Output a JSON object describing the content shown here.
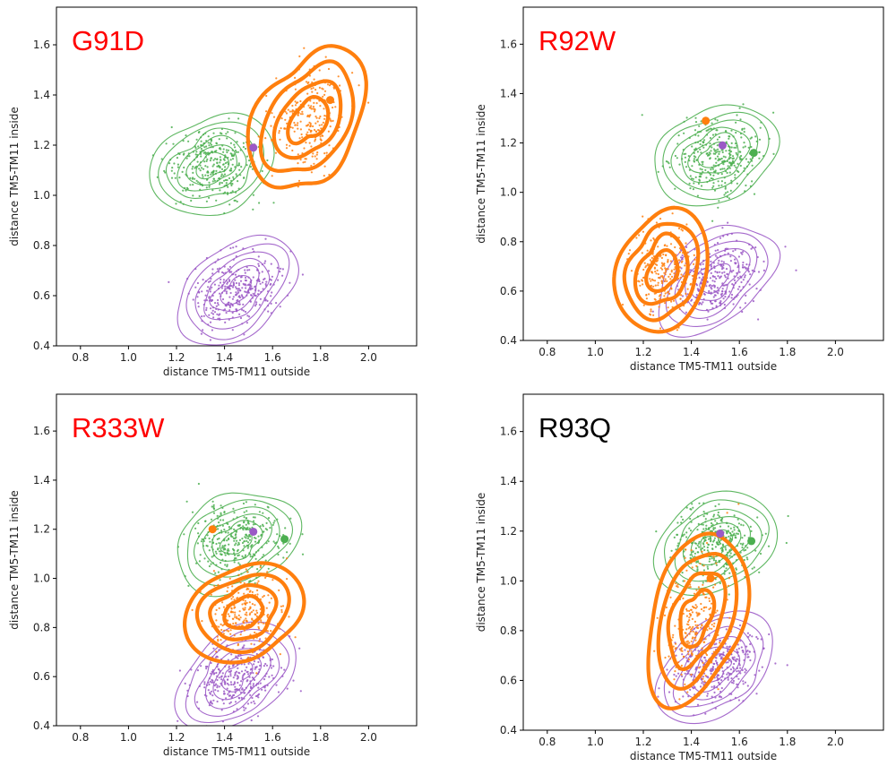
{
  "figure": {
    "colors": {
      "green": "#4caf50",
      "purple": "#9b59c6",
      "orange": "#ff7f0e",
      "title_red": "#ff0000",
      "title_black": "#000000"
    }
  },
  "chart_data": [
    {
      "type": "scatter",
      "title": "G91D",
      "title_color": "#ff0000",
      "xlabel": "distance TM5-TM11 outside",
      "ylabel": "distance TM5-TM11 inside",
      "xlim": [
        0.7,
        2.2
      ],
      "ylim": [
        0.4,
        1.75
      ],
      "xticks": [
        "0.8",
        "1.0",
        "1.2",
        "1.4",
        "1.6",
        "1.8",
        "2.0"
      ],
      "yticks": [
        "0.4",
        "0.6",
        "0.8",
        "1.0",
        "1.2",
        "1.4",
        "1.6"
      ],
      "grid": false,
      "series": [
        {
          "color": "green",
          "center": [
            1.35,
            1.12
          ],
          "spread": [
            0.16,
            0.13
          ],
          "tilt": 0.1
        },
        {
          "color": "purple",
          "center": [
            1.45,
            0.62
          ],
          "spread": [
            0.17,
            0.12
          ],
          "tilt": 0.45
        },
        {
          "color": "orange",
          "center": [
            1.75,
            1.3
          ],
          "spread": [
            0.13,
            0.2
          ],
          "tilt": -0.3
        }
      ],
      "markers": [
        {
          "color": "purple",
          "x": 1.52,
          "y": 1.19
        },
        {
          "color": "orange",
          "x": 1.84,
          "y": 1.38
        }
      ]
    },
    {
      "type": "scatter",
      "title": "R92W",
      "title_color": "#ff0000",
      "xlabel": "distance TM5-TM11 outside",
      "ylabel": "distance TM5-TM11 inside",
      "xlim": [
        0.7,
        2.2
      ],
      "ylim": [
        0.4,
        1.75
      ],
      "xticks": [
        "0.8",
        "1.0",
        "1.2",
        "1.4",
        "1.6",
        "1.8",
        "2.0"
      ],
      "yticks": [
        "0.4",
        "0.6",
        "0.8",
        "1.0",
        "1.2",
        "1.4",
        "1.6"
      ],
      "grid": false,
      "series": [
        {
          "color": "green",
          "center": [
            1.5,
            1.15
          ],
          "spread": [
            0.16,
            0.13
          ],
          "tilt": 0.1
        },
        {
          "color": "purple",
          "center": [
            1.5,
            0.65
          ],
          "spread": [
            0.17,
            0.12
          ],
          "tilt": 0.45
        },
        {
          "color": "orange",
          "center": [
            1.28,
            0.68
          ],
          "spread": [
            0.12,
            0.16
          ],
          "tilt": 0.1
        }
      ],
      "markers": [
        {
          "color": "purple",
          "x": 1.53,
          "y": 1.19
        },
        {
          "color": "green",
          "x": 1.66,
          "y": 1.16
        },
        {
          "color": "orange",
          "x": 1.46,
          "y": 1.29
        }
      ]
    },
    {
      "type": "scatter",
      "title": "R333W",
      "title_color": "#ff0000",
      "xlabel": "distance TM5-TM11 outside",
      "ylabel": "distance TM5-TM11 inside",
      "xlim": [
        0.7,
        2.2
      ],
      "ylim": [
        0.4,
        1.75
      ],
      "xticks": [
        "0.8",
        "1.0",
        "1.2",
        "1.4",
        "1.6",
        "1.8",
        "2.0"
      ],
      "yticks": [
        "0.4",
        "0.6",
        "0.8",
        "1.0",
        "1.2",
        "1.4",
        "1.6"
      ],
      "grid": false,
      "series": [
        {
          "color": "green",
          "center": [
            1.45,
            1.15
          ],
          "spread": [
            0.16,
            0.13
          ],
          "tilt": 0.1
        },
        {
          "color": "purple",
          "center": [
            1.45,
            0.6
          ],
          "spread": [
            0.17,
            0.12
          ],
          "tilt": 0.4
        },
        {
          "color": "orange",
          "center": [
            1.48,
            0.86
          ],
          "spread": [
            0.15,
            0.13
          ],
          "tilt": 0.0
        }
      ],
      "markers": [
        {
          "color": "purple",
          "x": 1.52,
          "y": 1.19
        },
        {
          "color": "green",
          "x": 1.65,
          "y": 1.16
        },
        {
          "color": "orange",
          "x": 1.35,
          "y": 1.2
        }
      ]
    },
    {
      "type": "scatter",
      "title": "R93Q",
      "title_color": "#000000",
      "xlabel": "distance TM5-TM11 outside",
      "ylabel": "distance TM5-TM11 inside",
      "xlim": [
        0.7,
        2.2
      ],
      "ylim": [
        0.4,
        1.75
      ],
      "xticks": [
        "0.8",
        "1.0",
        "1.2",
        "1.4",
        "1.6",
        "1.8",
        "2.0"
      ],
      "yticks": [
        "0.4",
        "0.6",
        "0.8",
        "1.0",
        "1.2",
        "1.4",
        "1.6"
      ],
      "grid": false,
      "series": [
        {
          "color": "green",
          "center": [
            1.5,
            1.15
          ],
          "spread": [
            0.16,
            0.13
          ],
          "tilt": 0.1
        },
        {
          "color": "purple",
          "center": [
            1.5,
            0.65
          ],
          "spread": [
            0.17,
            0.12
          ],
          "tilt": 0.45
        },
        {
          "color": "orange",
          "center": [
            1.42,
            0.85
          ],
          "spread": [
            0.12,
            0.23
          ],
          "tilt": -0.15
        }
      ],
      "markers": [
        {
          "color": "purple",
          "x": 1.52,
          "y": 1.19
        },
        {
          "color": "green",
          "x": 1.65,
          "y": 1.16
        },
        {
          "color": "orange",
          "x": 1.48,
          "y": 1.01
        }
      ]
    }
  ]
}
